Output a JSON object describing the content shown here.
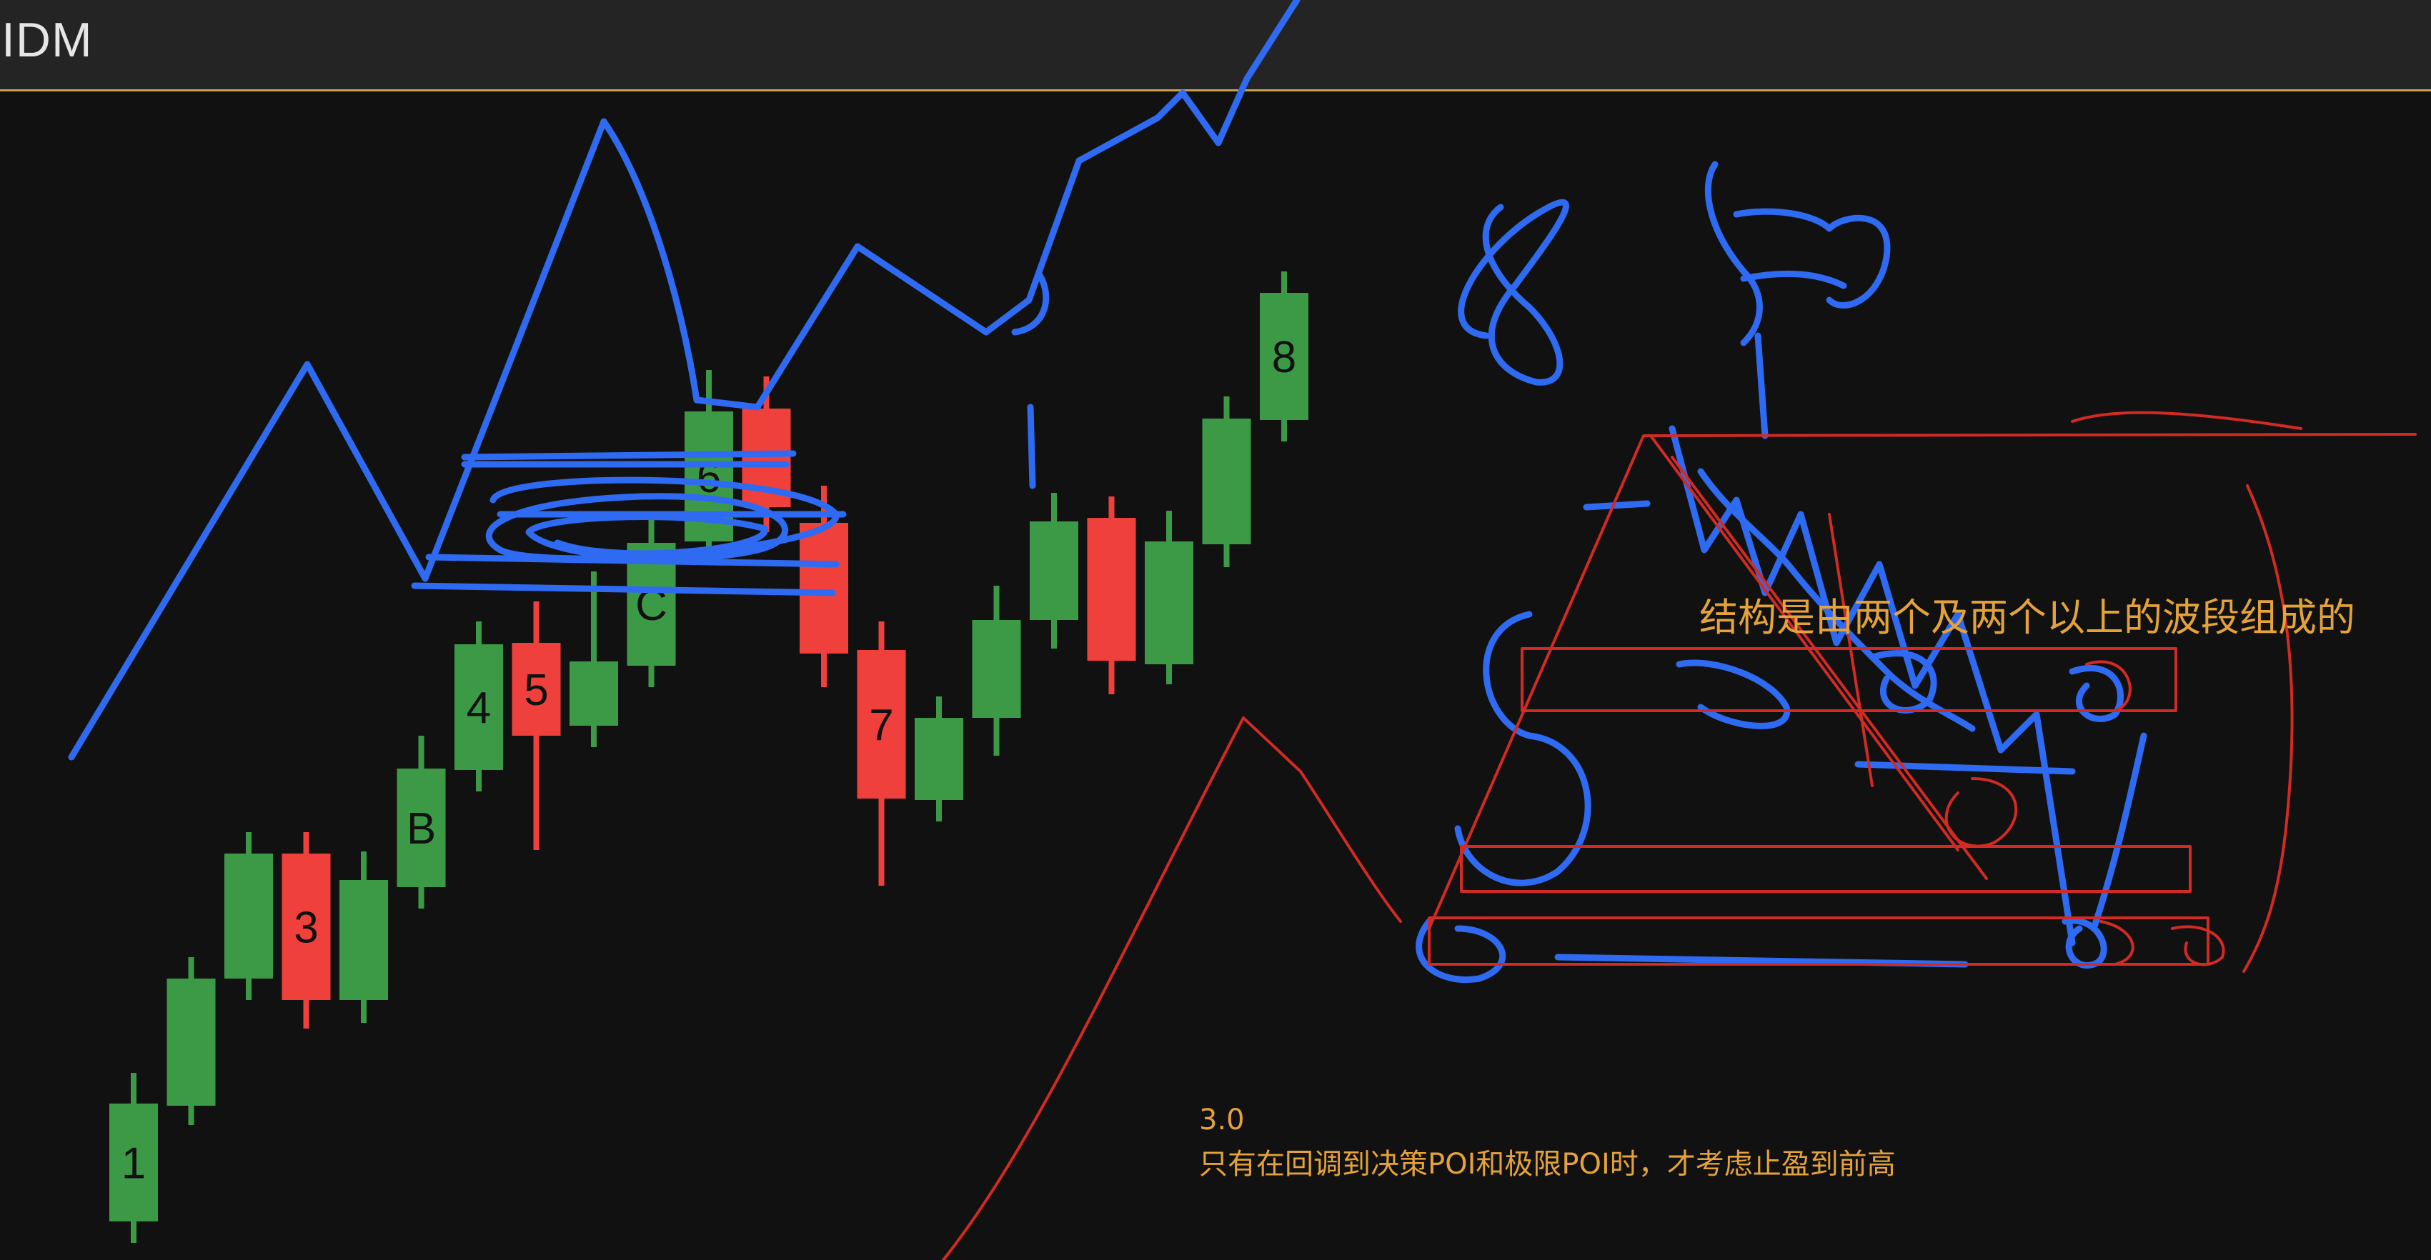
{
  "header": {
    "title": "IDM"
  },
  "notes": {
    "version": "3.0",
    "poi_line": "只有在回调到决策POI和极限POI时，才考虑止盈到前高",
    "structure_line": "结构是由两个及两个以上的波段组成的"
  },
  "colors": {
    "background": "#111111",
    "bull": "#3c9a46",
    "bear": "#f0403c",
    "annotation_blue": "#2f6bf2",
    "annotation_red": "#d22a24",
    "note_text": "#e4a23a"
  },
  "chart_data": {
    "type": "candlestick",
    "candles": [
      {
        "label": "1",
        "dir": "bull"
      },
      {
        "label": "",
        "dir": "bull"
      },
      {
        "label": "",
        "dir": "bull"
      },
      {
        "label": "3",
        "dir": "bear"
      },
      {
        "label": "",
        "dir": "bull"
      },
      {
        "label": "B",
        "dir": "bull"
      },
      {
        "label": "4",
        "dir": "bull"
      },
      {
        "label": "5",
        "dir": "bear"
      },
      {
        "label": "",
        "dir": "bull"
      },
      {
        "label": "C",
        "dir": "bull"
      },
      {
        "label": "6",
        "dir": "bull"
      },
      {
        "label": "",
        "dir": "bear"
      },
      {
        "label": "",
        "dir": "bear"
      },
      {
        "label": "7",
        "dir": "bear"
      },
      {
        "label": "",
        "dir": "bull"
      },
      {
        "label": "",
        "dir": "bull"
      },
      {
        "label": "",
        "dir": "bull"
      },
      {
        "label": "",
        "dir": "bear"
      },
      {
        "label": "",
        "dir": "bull"
      },
      {
        "label": "",
        "dir": "bull"
      },
      {
        "label": "8",
        "dir": "bull"
      }
    ]
  }
}
